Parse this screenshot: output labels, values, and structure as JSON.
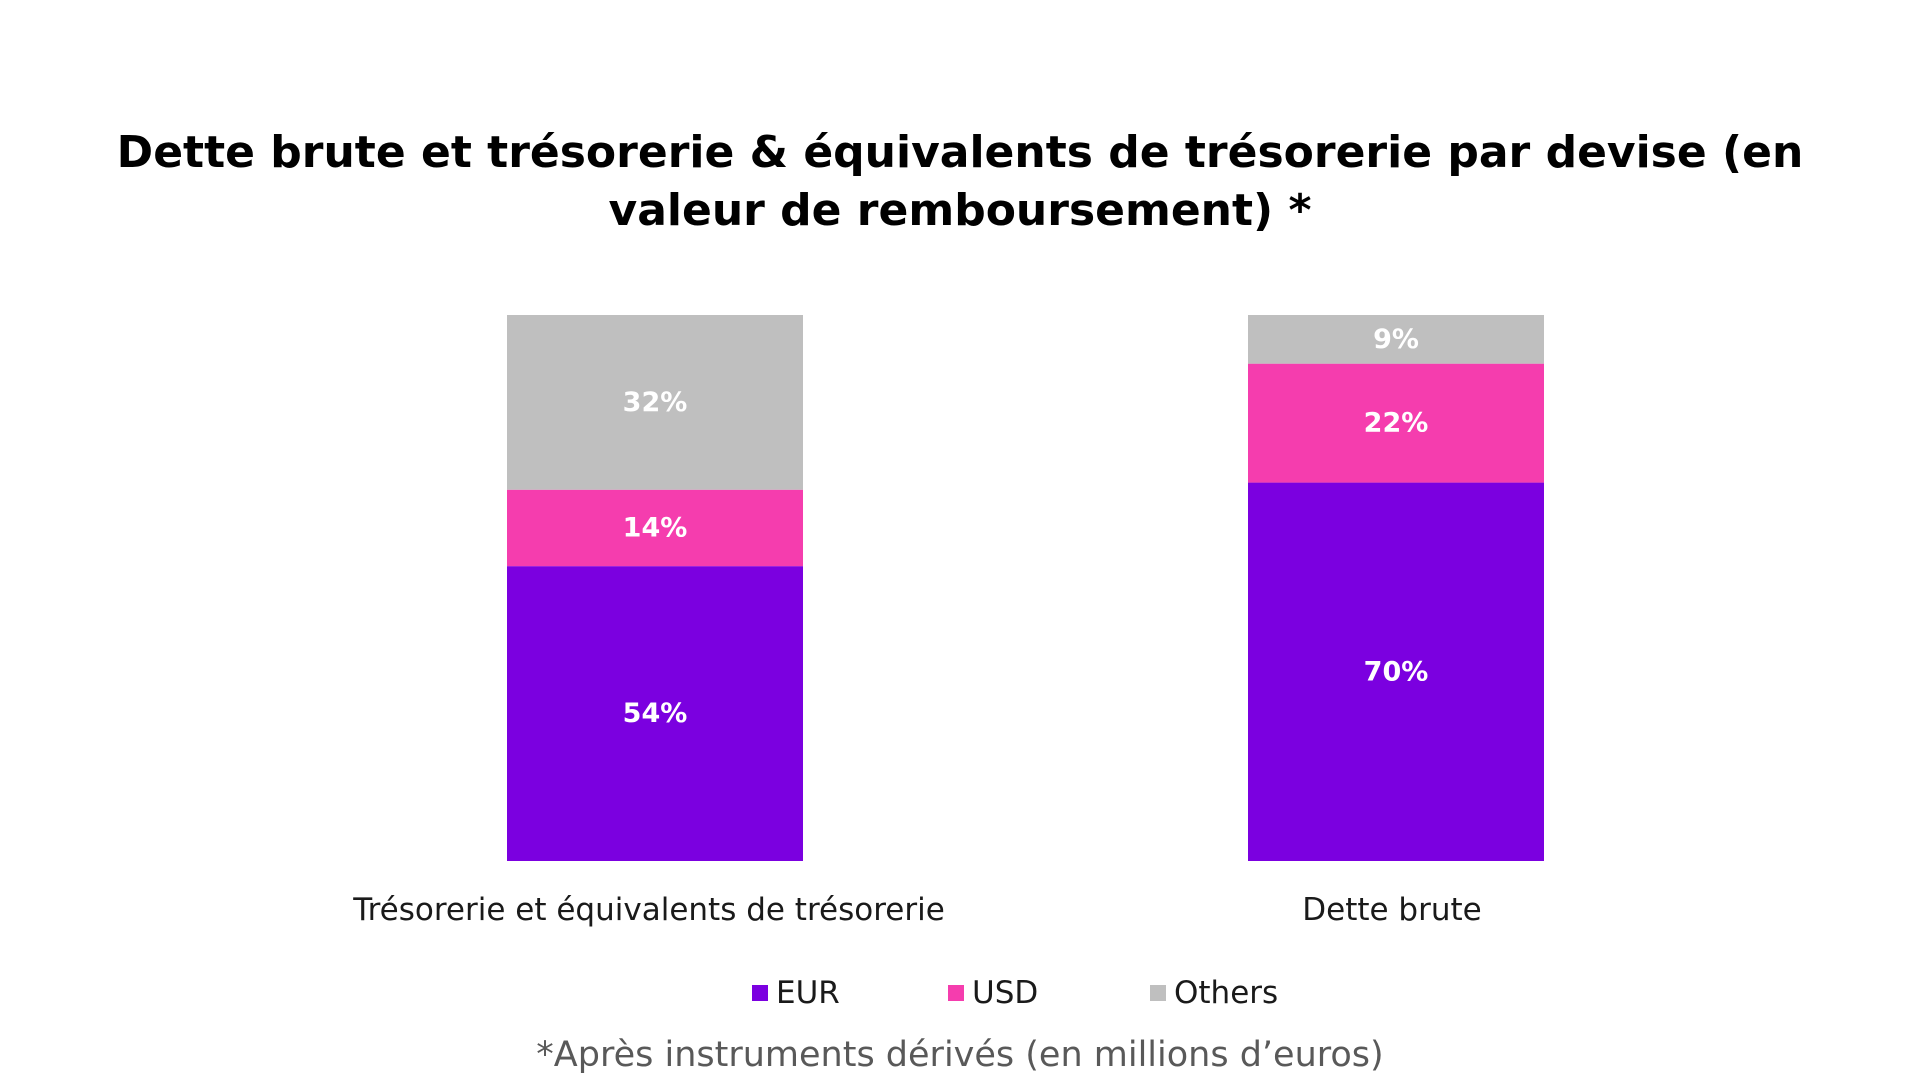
{
  "chart_data": {
    "type": "bar",
    "stacked": true,
    "title": "Dette brute et trésorerie & équivalents de trésorerie par devise (en valeur de remboursement) *",
    "categories": [
      "Trésorerie et équivalents de trésorerie",
      "Dette brute"
    ],
    "series": [
      {
        "name": "EUR",
        "values": [
          54,
          70
        ],
        "labels": [
          "54%",
          "70%"
        ],
        "color": "#7B00E0"
      },
      {
        "name": "USD",
        "values": [
          14,
          22
        ],
        "labels": [
          "14%",
          "22%"
        ],
        "color": "#F53DAE"
      },
      {
        "name": "Others",
        "values": [
          32,
          9
        ],
        "labels": [
          "32%",
          "9%"
        ],
        "color": "#BFBFBF"
      }
    ],
    "ylim": [
      0,
      100
    ],
    "grid": false,
    "legend_position": "bottom",
    "footnote": "*Après instruments dérivés (en millions d’euros)"
  }
}
